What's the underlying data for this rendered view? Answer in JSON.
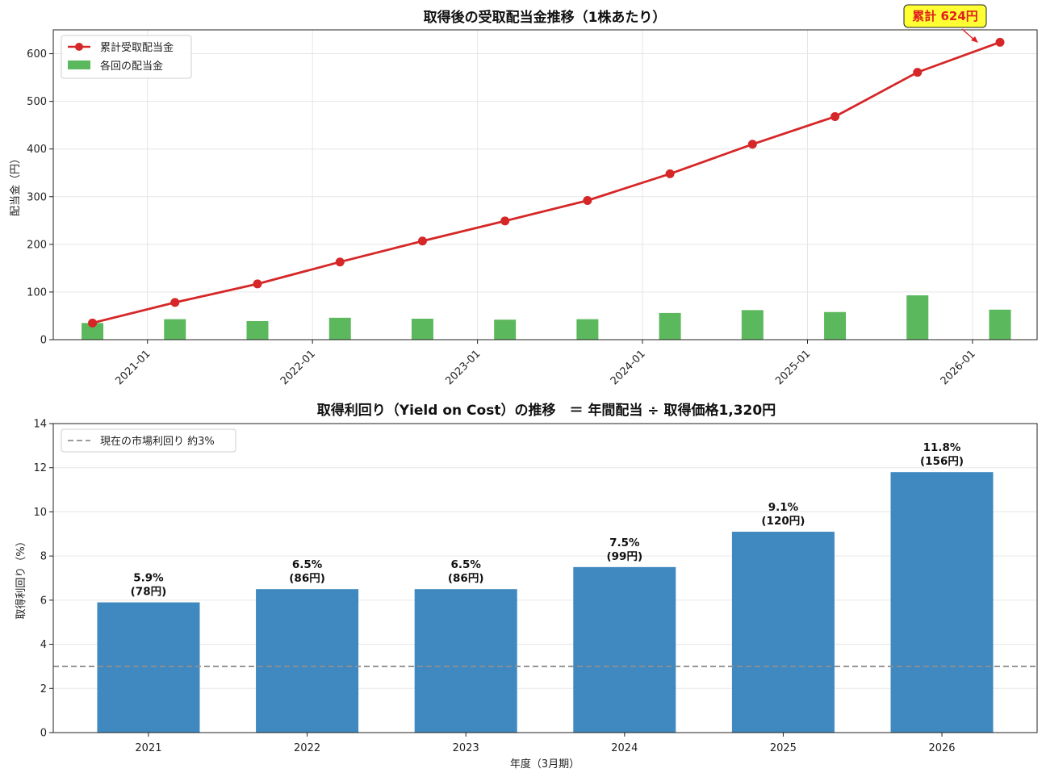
{
  "chart_data": [
    {
      "type": "line",
      "title": "取得後の受取配当金推移（1株あたり）",
      "xlabel": "",
      "ylabel": "配当金（円）",
      "ylim": [
        0,
        650
      ],
      "yticks": [
        0,
        100,
        200,
        300,
        400,
        500,
        600
      ],
      "xticks": [
        "2021-01",
        "2022-01",
        "2023-01",
        "2024-01",
        "2025-01",
        "2026-01"
      ],
      "grid": true,
      "legend_position": "top-left",
      "dates": [
        "2020-09",
        "2021-03",
        "2021-09",
        "2022-03",
        "2022-09",
        "2023-03",
        "2023-09",
        "2024-03",
        "2024-09",
        "2025-03",
        "2025-09",
        "2026-03"
      ],
      "series": [
        {
          "name": "累計受取配当金",
          "kind": "line",
          "color": "#d62728",
          "values": [
            35,
            78,
            117,
            163,
            207,
            249,
            292,
            348,
            410,
            468,
            561,
            624
          ]
        },
        {
          "name": "各回の配当金",
          "kind": "bar",
          "color": "#5cb85c",
          "values": [
            35,
            43,
            39,
            46,
            44,
            42,
            43,
            56,
            62,
            58,
            93,
            63
          ]
        }
      ],
      "annotation": {
        "text": "累計 624円",
        "target_index": 11,
        "bg": "#ffff33",
        "color": "#e02020"
      }
    },
    {
      "type": "bar",
      "title": "取得利回り（Yield on Cost）の推移　＝ 年間配当 ÷ 取得価格1,320円",
      "xlabel": "年度（3月期）",
      "ylabel": "取得利回り（%）",
      "ylim": [
        0,
        14
      ],
      "yticks": [
        0,
        2,
        4,
        6,
        8,
        10,
        12,
        14
      ],
      "grid": true,
      "legend_position": "top-left",
      "categories": [
        "2021",
        "2022",
        "2023",
        "2024",
        "2025",
        "2026"
      ],
      "values": [
        5.9,
        6.5,
        6.5,
        7.5,
        9.1,
        11.8
      ],
      "pct_labels": [
        "5.9%",
        "6.5%",
        "6.5%",
        "7.5%",
        "9.1%",
        "11.8%"
      ],
      "yen_labels": [
        "(78円)",
        "(86円)",
        "(86円)",
        "(99円)",
        "(120円)",
        "(156円)"
      ],
      "bar_color": "#3f88c0",
      "reference_line": {
        "name": "現在の市場利回り 約3%",
        "value": 3,
        "color": "#8f8f8f"
      }
    }
  ]
}
